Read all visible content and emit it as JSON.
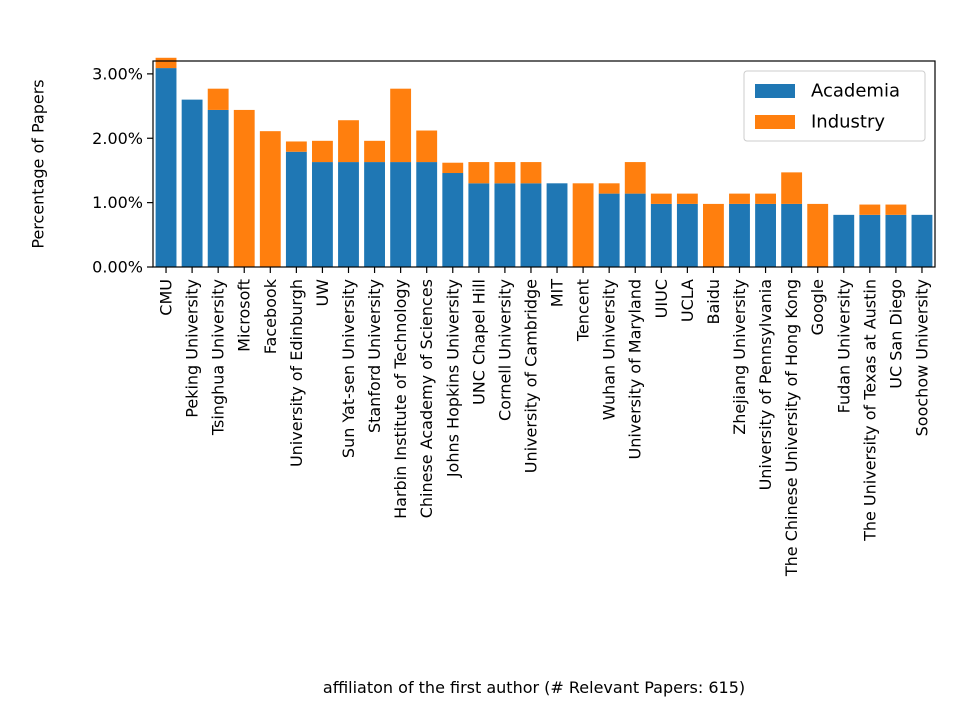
{
  "chart_data": {
    "type": "bar",
    "stacked": true,
    "xlabel": "affiliaton of the first author (# Relevant Papers: 615)",
    "ylabel": "Percentage of Papers",
    "ylim": [
      0,
      3.2
    ],
    "yticks": [
      0,
      1,
      2,
      3
    ],
    "ytick_labels": [
      "0.00%",
      "1.00%",
      "2.00%",
      "3.00%"
    ],
    "legend_position": "top-right",
    "categories": [
      "CMU",
      "Peking University",
      "Tsinghua University",
      "Microsoft",
      "Facebook",
      "University of Edinburgh",
      "UW",
      "Sun Yat-sen University",
      "Stanford University",
      "Harbin Institute of Technology",
      "Chinese Academy of Sciences",
      "Johns Hopkins University",
      "UNC Chapel Hill",
      "Cornell University",
      "University of Cambridge",
      "MIT",
      "Tencent",
      "Wuhan University",
      "University of Maryland",
      "UIUC",
      "UCLA",
      "Baidu",
      "Zhejiang University",
      "University of Pennsylvania",
      "The Chinese University of Hong Kong",
      "Google",
      "Fudan University",
      "The University of Texas at Austin",
      "UC San Diego",
      "Soochow University"
    ],
    "series": [
      {
        "name": "Academia",
        "color": "#1f77b4",
        "values": [
          3.09,
          2.6,
          2.44,
          0,
          0,
          1.79,
          1.63,
          1.63,
          1.63,
          1.63,
          1.63,
          1.46,
          1.3,
          1.3,
          1.3,
          1.3,
          0,
          1.14,
          1.14,
          0.98,
          0.98,
          0,
          0.98,
          0.98,
          0.98,
          0,
          0.81,
          0.81,
          0.81,
          0.81
        ]
      },
      {
        "name": "Industry",
        "color": "#ff7f0e",
        "values": [
          0.16,
          0,
          0.33,
          2.44,
          2.11,
          0.16,
          0.33,
          0.65,
          0.33,
          1.14,
          0.49,
          0.16,
          0.33,
          0.33,
          0.33,
          0,
          1.3,
          0.16,
          0.49,
          0.16,
          0.16,
          0.98,
          0.16,
          0.16,
          0.49,
          0.98,
          0,
          0.16,
          0.16,
          0
        ]
      }
    ]
  }
}
